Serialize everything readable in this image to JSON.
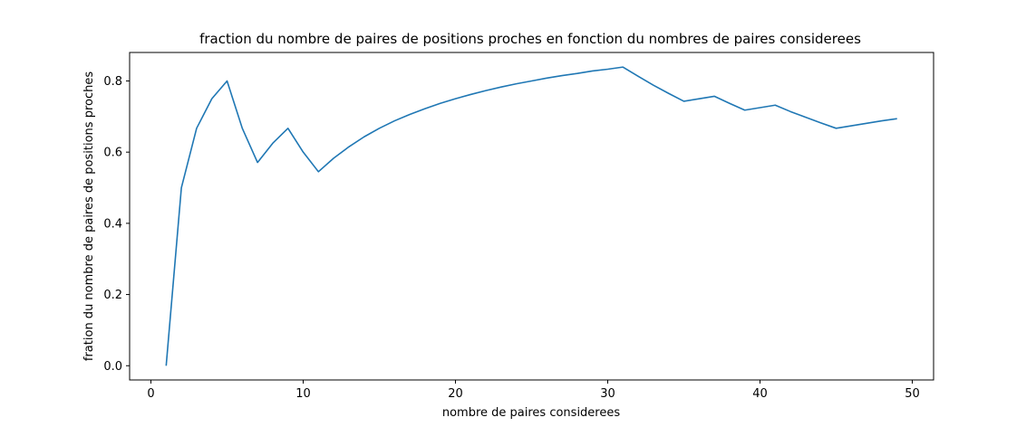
{
  "chart_data": {
    "type": "line",
    "title": "fraction du nombre de paires de positions proches en fonction du nombres de paires considerees",
    "xlabel": "nombre de paires considerees",
    "ylabel": "fration du nombre de paires de positions proches",
    "xlim": [
      -1.4,
      51.4
    ],
    "ylim": [
      -0.04,
      0.88
    ],
    "xticks": [
      0,
      10,
      20,
      30,
      40,
      50
    ],
    "yticks": [
      0.0,
      0.2,
      0.4,
      0.6,
      0.8
    ],
    "xtick_labels": [
      "0",
      "10",
      "20",
      "30",
      "40",
      "50"
    ],
    "ytick_labels": [
      "0.0",
      "0.2",
      "0.4",
      "0.6",
      "0.8"
    ],
    "grid": false,
    "series": [
      {
        "color": "#1f77b4",
        "x": [
          1,
          2,
          3,
          4,
          5,
          6,
          7,
          8,
          9,
          10,
          11,
          12,
          13,
          14,
          15,
          16,
          17,
          18,
          19,
          20,
          21,
          22,
          23,
          24,
          25,
          26,
          27,
          28,
          29,
          30,
          31,
          32,
          33,
          34,
          35,
          36,
          37,
          38,
          39,
          40,
          41,
          42,
          43,
          44,
          45,
          46,
          47,
          48,
          49
        ],
        "y": [
          0.0,
          0.5,
          0.667,
          0.75,
          0.8,
          0.667,
          0.571,
          0.625,
          0.667,
          0.6,
          0.545,
          0.583,
          0.615,
          0.643,
          0.667,
          0.688,
          0.706,
          0.722,
          0.737,
          0.75,
          0.762,
          0.773,
          0.783,
          0.792,
          0.8,
          0.808,
          0.815,
          0.821,
          0.828,
          0.833,
          0.839,
          0.813,
          0.788,
          0.765,
          0.743,
          0.75,
          0.757,
          0.737,
          0.718,
          0.725,
          0.732,
          0.714,
          0.698,
          0.682,
          0.667,
          0.674,
          0.681,
          0.688,
          0.694
        ]
      }
    ]
  }
}
